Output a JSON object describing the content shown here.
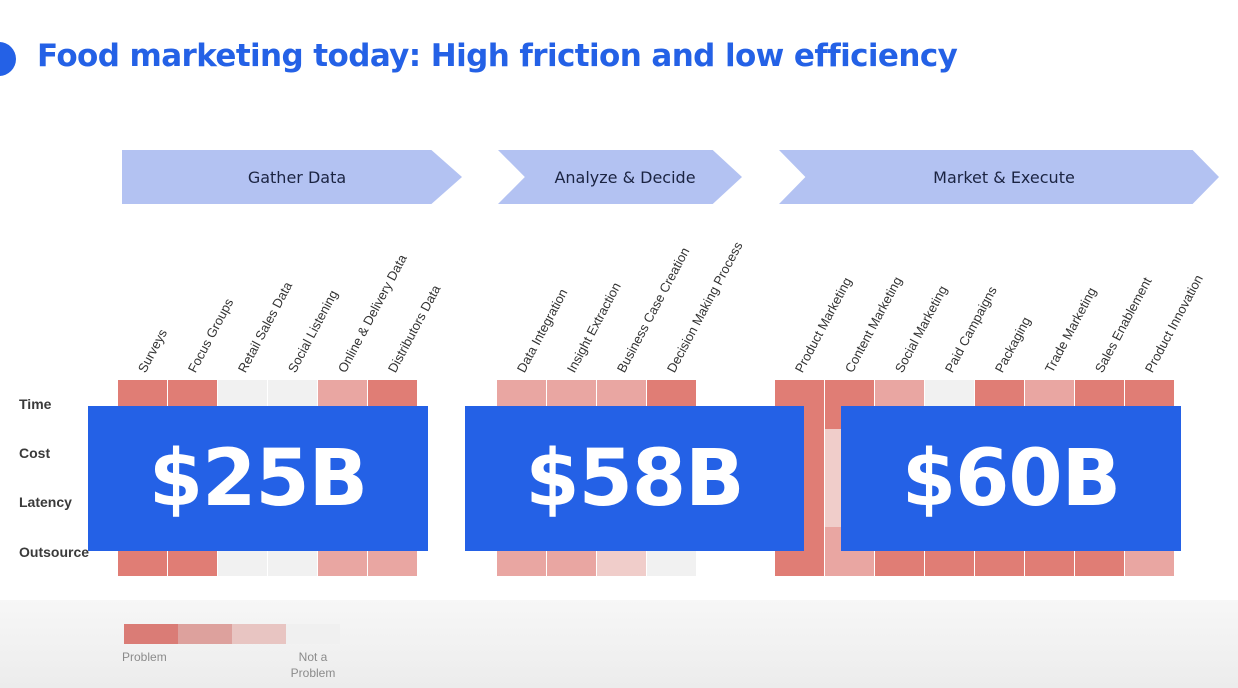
{
  "title": "Food marketing today: High friction and low efficiency",
  "stages": [
    {
      "label": "Gather Data"
    },
    {
      "label": "Analyze & Decide"
    },
    {
      "label": "Market & Execute"
    }
  ],
  "columns": [
    "Surveys",
    "Focus Groups",
    "Retail Sales Data",
    "Social Listening",
    "Online & Delivery Data",
    "Distributors Data",
    "Data Integration",
    "Insight Extraction",
    "Business Case Creation",
    "Decision Making Process",
    "Product Marketing",
    "Content Marketing",
    "Social Marketing",
    "Paid Campaigns",
    "Packaging",
    "Trade Marketing",
    "Sales Enablement",
    "Product Innovation"
  ],
  "rows": [
    "Time",
    "Cost",
    "Latency",
    "Outsource"
  ],
  "values": {
    "Time": [
      1,
      1,
      4,
      4,
      2,
      1,
      2,
      2,
      2,
      1,
      1,
      1,
      2,
      4,
      1,
      2,
      1,
      1
    ],
    "Cost": [
      1,
      1,
      4,
      4,
      2,
      1,
      2,
      2,
      2,
      1,
      1,
      3,
      2,
      4,
      1,
      2,
      1,
      1
    ],
    "Latency": [
      1,
      1,
      4,
      4,
      2,
      1,
      2,
      2,
      2,
      1,
      1,
      3,
      2,
      4,
      1,
      2,
      1,
      1
    ],
    "Outsource": [
      1,
      1,
      4,
      4,
      2,
      2,
      2,
      2,
      3,
      4,
      1,
      2,
      1,
      1,
      1,
      1,
      1,
      2
    ]
  },
  "level_colors": [
    "#e07d75",
    "#e9a6a2",
    "#f0cdca",
    "#f1f1f1"
  ],
  "amounts": [
    "$25B",
    "$58B",
    "$60B"
  ],
  "legend": {
    "left_label": "Problem",
    "right_label_line1": "Not a",
    "right_label_line2": "Problem",
    "colors": [
      "#da7c76",
      "#dda19d",
      "#e8c5c2",
      "#f0f0f0"
    ]
  },
  "colors": {
    "accent": "#2461e6",
    "stage": "#b3c2f2"
  }
}
